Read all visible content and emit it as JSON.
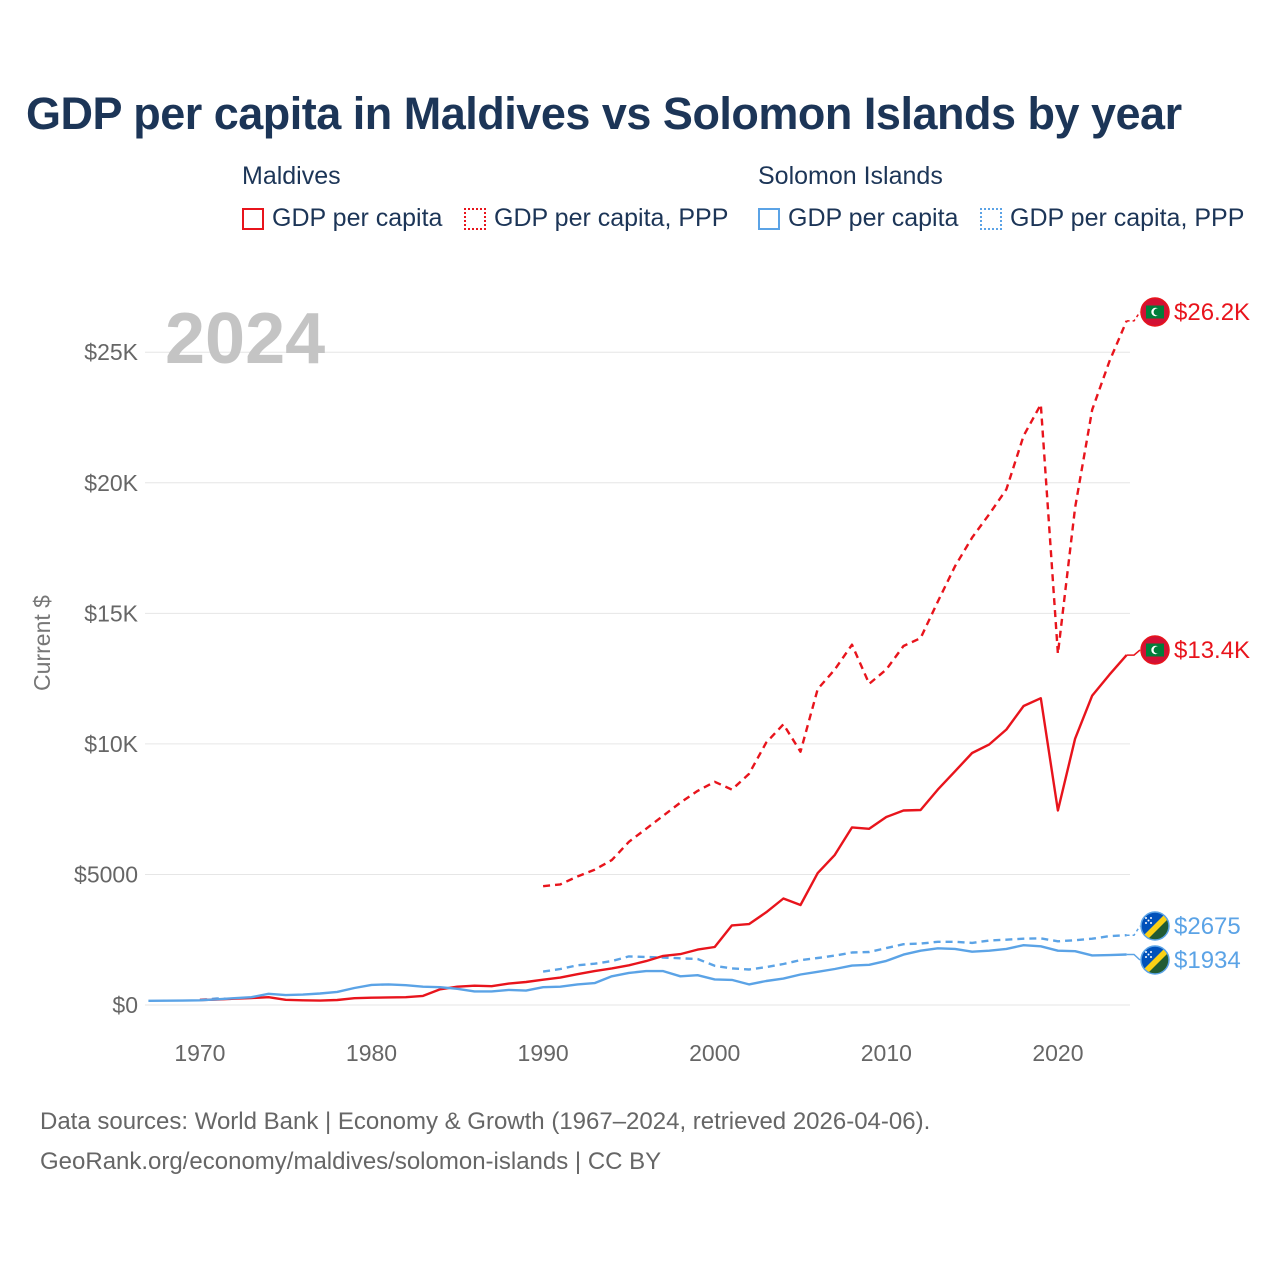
{
  "title": "GDP per capita in Maldives vs Solomon Islands by year",
  "legend": {
    "groups": [
      {
        "name": "Maldives",
        "color": "#e8141c",
        "items": [
          "GDP per capita",
          "GDP per capita, PPP"
        ]
      },
      {
        "name": "Solomon Islands",
        "color": "#5ba3e6",
        "items": [
          "GDP per capita",
          "GDP per capita, PPP"
        ]
      }
    ]
  },
  "footer": {
    "line1": "Data sources: World Bank | Economy & Growth (1967–2024, retrieved 2026-04-06).",
    "line2": "GeoRank.org/economy/maldives/solomon-islands | CC BY"
  },
  "chart_data": {
    "type": "line",
    "year_label": "2024",
    "ylabel": "Current $",
    "xlim": [
      1966.8,
      2024.2
    ],
    "ylim": [
      0,
      27000
    ],
    "x_ticks": [
      1970,
      1980,
      1990,
      2000,
      2010,
      2020
    ],
    "x_tick_labels": [
      "1970",
      "1980",
      "1990",
      "2000",
      "2010",
      "2020"
    ],
    "y_ticks": [
      0,
      5000,
      10000,
      15000,
      20000,
      25000
    ],
    "y_tick_labels": [
      "$0",
      "$5000",
      "$10K",
      "$15K",
      "$20K",
      "$25K"
    ],
    "series": [
      {
        "name": "Maldives GDP per capita",
        "country": "Maldives",
        "color": "#e8141c",
        "dash": "solid",
        "end_label": "$13.4K",
        "flag": "maldives",
        "x": [
          1970,
          1971,
          1972,
          1973,
          1974,
          1975,
          1976,
          1977,
          1978,
          1979,
          1980,
          1981,
          1982,
          1983,
          1984,
          1985,
          1986,
          1987,
          1988,
          1989,
          1990,
          1991,
          1992,
          1993,
          1994,
          1995,
          1996,
          1997,
          1998,
          1999,
          2000,
          2001,
          2002,
          2003,
          2004,
          2005,
          2006,
          2007,
          2008,
          2009,
          2010,
          2011,
          2012,
          2013,
          2014,
          2015,
          2016,
          2017,
          2018,
          2019,
          2020,
          2021,
          2022,
          2023,
          2024
        ],
        "values": [
          190,
          210,
          240,
          270,
          300,
          200,
          180,
          170,
          190,
          260,
          280,
          290,
          300,
          350,
          600,
          700,
          740,
          720,
          820,
          880,
          970,
          1050,
          1180,
          1300,
          1400,
          1520,
          1680,
          1880,
          1950,
          2120,
          2220,
          3050,
          3100,
          3550,
          4080,
          3830,
          5050,
          5750,
          6800,
          6750,
          7200,
          7450,
          7470,
          8250,
          8950,
          9650,
          9980,
          10550,
          11450,
          11750,
          7450,
          10200,
          11850,
          12650,
          13400
        ]
      },
      {
        "name": "Maldives GDP per capita, PPP",
        "country": "Maldives",
        "color": "#e8141c",
        "dash": "dashed",
        "end_label": "$26.2K",
        "flag": "maldives",
        "x": [
          1990,
          1991,
          1992,
          1993,
          1994,
          1995,
          1996,
          1997,
          1998,
          1999,
          2000,
          2001,
          2002,
          2003,
          2004,
          2005,
          2006,
          2007,
          2008,
          2009,
          2010,
          2011,
          2012,
          2013,
          2014,
          2015,
          2016,
          2017,
          2018,
          2019,
          2020,
          2021,
          2022,
          2023,
          2024
        ],
        "values": [
          4550,
          4620,
          4920,
          5180,
          5550,
          6250,
          6750,
          7250,
          7750,
          8200,
          8550,
          8250,
          8850,
          10050,
          10750,
          9700,
          12100,
          12850,
          13800,
          12300,
          12850,
          13750,
          14050,
          15450,
          16800,
          17900,
          18800,
          19750,
          21800,
          23000,
          13450,
          19050,
          22800,
          24650,
          26200
        ]
      },
      {
        "name": "Solomon Islands GDP per capita",
        "country": "Solomon Islands",
        "color": "#5ba3e6",
        "dash": "solid",
        "end_label": "$1934",
        "flag": "solomon",
        "x": [
          1967,
          1968,
          1969,
          1970,
          1971,
          1972,
          1973,
          1974,
          1975,
          1976,
          1977,
          1978,
          1979,
          1980,
          1981,
          1982,
          1983,
          1984,
          1985,
          1986,
          1987,
          1988,
          1989,
          1990,
          1991,
          1992,
          1993,
          1994,
          1995,
          1996,
          1997,
          1998,
          1999,
          2000,
          2001,
          2002,
          2003,
          2004,
          2005,
          2006,
          2007,
          2008,
          2009,
          2010,
          2011,
          2012,
          2013,
          2014,
          2015,
          2016,
          2017,
          2018,
          2019,
          2020,
          2021,
          2022,
          2023,
          2024
        ],
        "values": [
          160,
          165,
          170,
          180,
          220,
          260,
          300,
          430,
          380,
          400,
          440,
          500,
          650,
          770,
          790,
          760,
          700,
          680,
          620,
          520,
          520,
          580,
          550,
          680,
          700,
          790,
          840,
          1100,
          1230,
          1300,
          1300,
          1100,
          1140,
          980,
          960,
          790,
          920,
          1010,
          1170,
          1270,
          1380,
          1510,
          1540,
          1690,
          1930,
          2080,
          2170,
          2150,
          2040,
          2080,
          2150,
          2290,
          2250,
          2080,
          2060,
          1900,
          1910,
          1934
        ]
      },
      {
        "name": "Solomon Islands GDP per capita, PPP",
        "country": "Solomon Islands",
        "color": "#5ba3e6",
        "dash": "dashed",
        "end_label": "$2675",
        "flag": "solomon",
        "x": [
          1970,
          1971,
          1972,
          1990,
          1991,
          1992,
          1993,
          1994,
          1995,
          1996,
          1997,
          1998,
          1999,
          2000,
          2001,
          2002,
          2003,
          2004,
          2005,
          2006,
          2007,
          2008,
          2009,
          2010,
          2011,
          2012,
          2013,
          2014,
          2015,
          2016,
          2017,
          2018,
          2019,
          2020,
          2021,
          2022,
          2023,
          2024
        ],
        "values": [
          200,
          250,
          230,
          1280,
          1380,
          1520,
          1580,
          1680,
          1860,
          1840,
          1820,
          1790,
          1760,
          1500,
          1400,
          1360,
          1450,
          1570,
          1720,
          1800,
          1890,
          2010,
          2030,
          2180,
          2330,
          2350,
          2420,
          2420,
          2380,
          2470,
          2500,
          2540,
          2550,
          2440,
          2480,
          2540,
          2640,
          2675
        ]
      }
    ]
  }
}
